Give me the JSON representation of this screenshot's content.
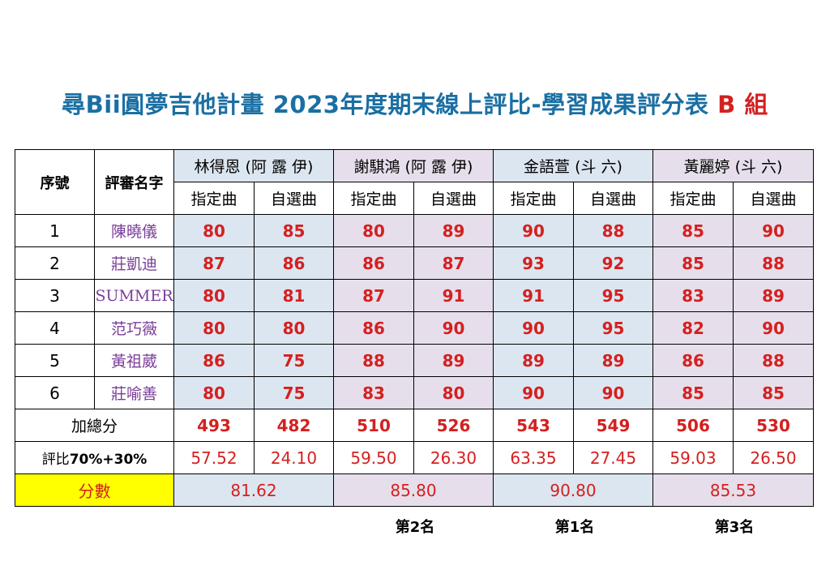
{
  "title": {
    "main": "尋Bii圓夢吉他計畫  2023年度期末線上評比-學習成果評分表",
    "group": "B 組"
  },
  "table": {
    "col_seq": "序號",
    "col_judge": "評審名字",
    "performers": [
      "林得恩 (阿 露 伊)",
      "謝騏鴻 (阿 露 伊)",
      "金語萱 (斗 六)",
      "黃麗婷 (斗 六)"
    ],
    "song_types": [
      "指定曲",
      "自選曲"
    ],
    "rows": [
      {
        "seq": "1",
        "judge": "陳曉儀",
        "scores": [
          "80",
          "85",
          "80",
          "89",
          "90",
          "88",
          "85",
          "90"
        ]
      },
      {
        "seq": "2",
        "judge": "莊凱迪",
        "scores": [
          "87",
          "86",
          "86",
          "87",
          "93",
          "92",
          "85",
          "88"
        ]
      },
      {
        "seq": "3",
        "judge": "SUMMER",
        "scores": [
          "80",
          "81",
          "87",
          "91",
          "91",
          "95",
          "83",
          "89"
        ]
      },
      {
        "seq": "4",
        "judge": "范巧薇",
        "scores": [
          "80",
          "80",
          "86",
          "90",
          "90",
          "95",
          "82",
          "90"
        ]
      },
      {
        "seq": "5",
        "judge": "黃祖葳",
        "scores": [
          "86",
          "75",
          "88",
          "89",
          "89",
          "89",
          "86",
          "88"
        ]
      },
      {
        "seq": "6",
        "judge": "莊喻善",
        "scores": [
          "80",
          "75",
          "83",
          "80",
          "90",
          "90",
          "85",
          "85"
        ]
      }
    ],
    "total_label": "加總分",
    "totals": [
      "493",
      "482",
      "510",
      "526",
      "543",
      "549",
      "506",
      "530"
    ],
    "ratio_label_prefix": "評比",
    "ratio_label_bold": "70%+30%",
    "ratios": [
      "57.52",
      "24.10",
      "59.50",
      "26.30",
      "63.35",
      "27.45",
      "59.03",
      "26.50"
    ],
    "score_label": "分數",
    "final_scores": [
      "81.62",
      "85.80",
      "90.80",
      "85.53"
    ]
  },
  "ranks": [
    "第2名",
    "第1名",
    "第3名"
  ]
}
